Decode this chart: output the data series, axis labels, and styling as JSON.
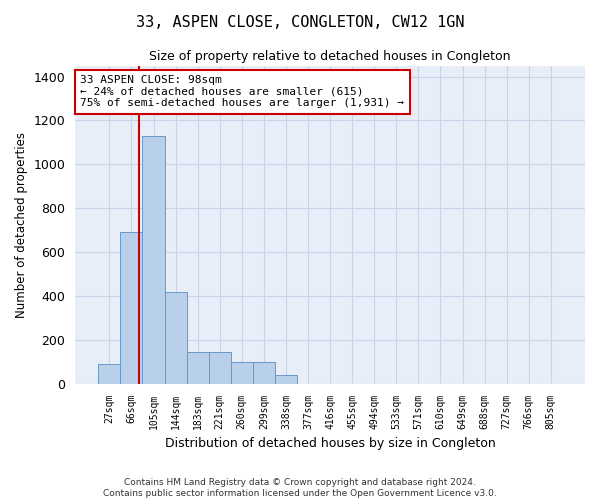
{
  "title": "33, ASPEN CLOSE, CONGLETON, CW12 1GN",
  "subtitle": "Size of property relative to detached houses in Congleton",
  "xlabel": "Distribution of detached houses by size in Congleton",
  "ylabel": "Number of detached properties",
  "bar_labels": [
    "27sqm",
    "66sqm",
    "105sqm",
    "144sqm",
    "183sqm",
    "221sqm",
    "260sqm",
    "299sqm",
    "338sqm",
    "377sqm",
    "416sqm",
    "455sqm",
    "494sqm",
    "533sqm",
    "571sqm",
    "610sqm",
    "649sqm",
    "688sqm",
    "727sqm",
    "766sqm",
    "805sqm"
  ],
  "bar_values": [
    90,
    690,
    1130,
    420,
    145,
    145,
    100,
    100,
    40,
    0,
    0,
    0,
    0,
    0,
    0,
    0,
    0,
    0,
    0,
    0,
    0
  ],
  "bar_color": "#b8d0ea",
  "bar_edge_color": "#6699cc",
  "grid_color": "#c8d4e8",
  "bg_color": "#e8eef8",
  "vline_color": "#cc0000",
  "annotation_text": "33 ASPEN CLOSE: 98sqm\n← 24% of detached houses are smaller (615)\n75% of semi-detached houses are larger (1,931) →",
  "annotation_box_color": "#ffffff",
  "annotation_box_edge": "#cc0000",
  "ylim": [
    0,
    1450
  ],
  "yticks": [
    0,
    200,
    400,
    600,
    800,
    1000,
    1200,
    1400
  ],
  "footer_line1": "Contains HM Land Registry data © Crown copyright and database right 2024.",
  "footer_line2": "Contains public sector information licensed under the Open Government Licence v3.0."
}
